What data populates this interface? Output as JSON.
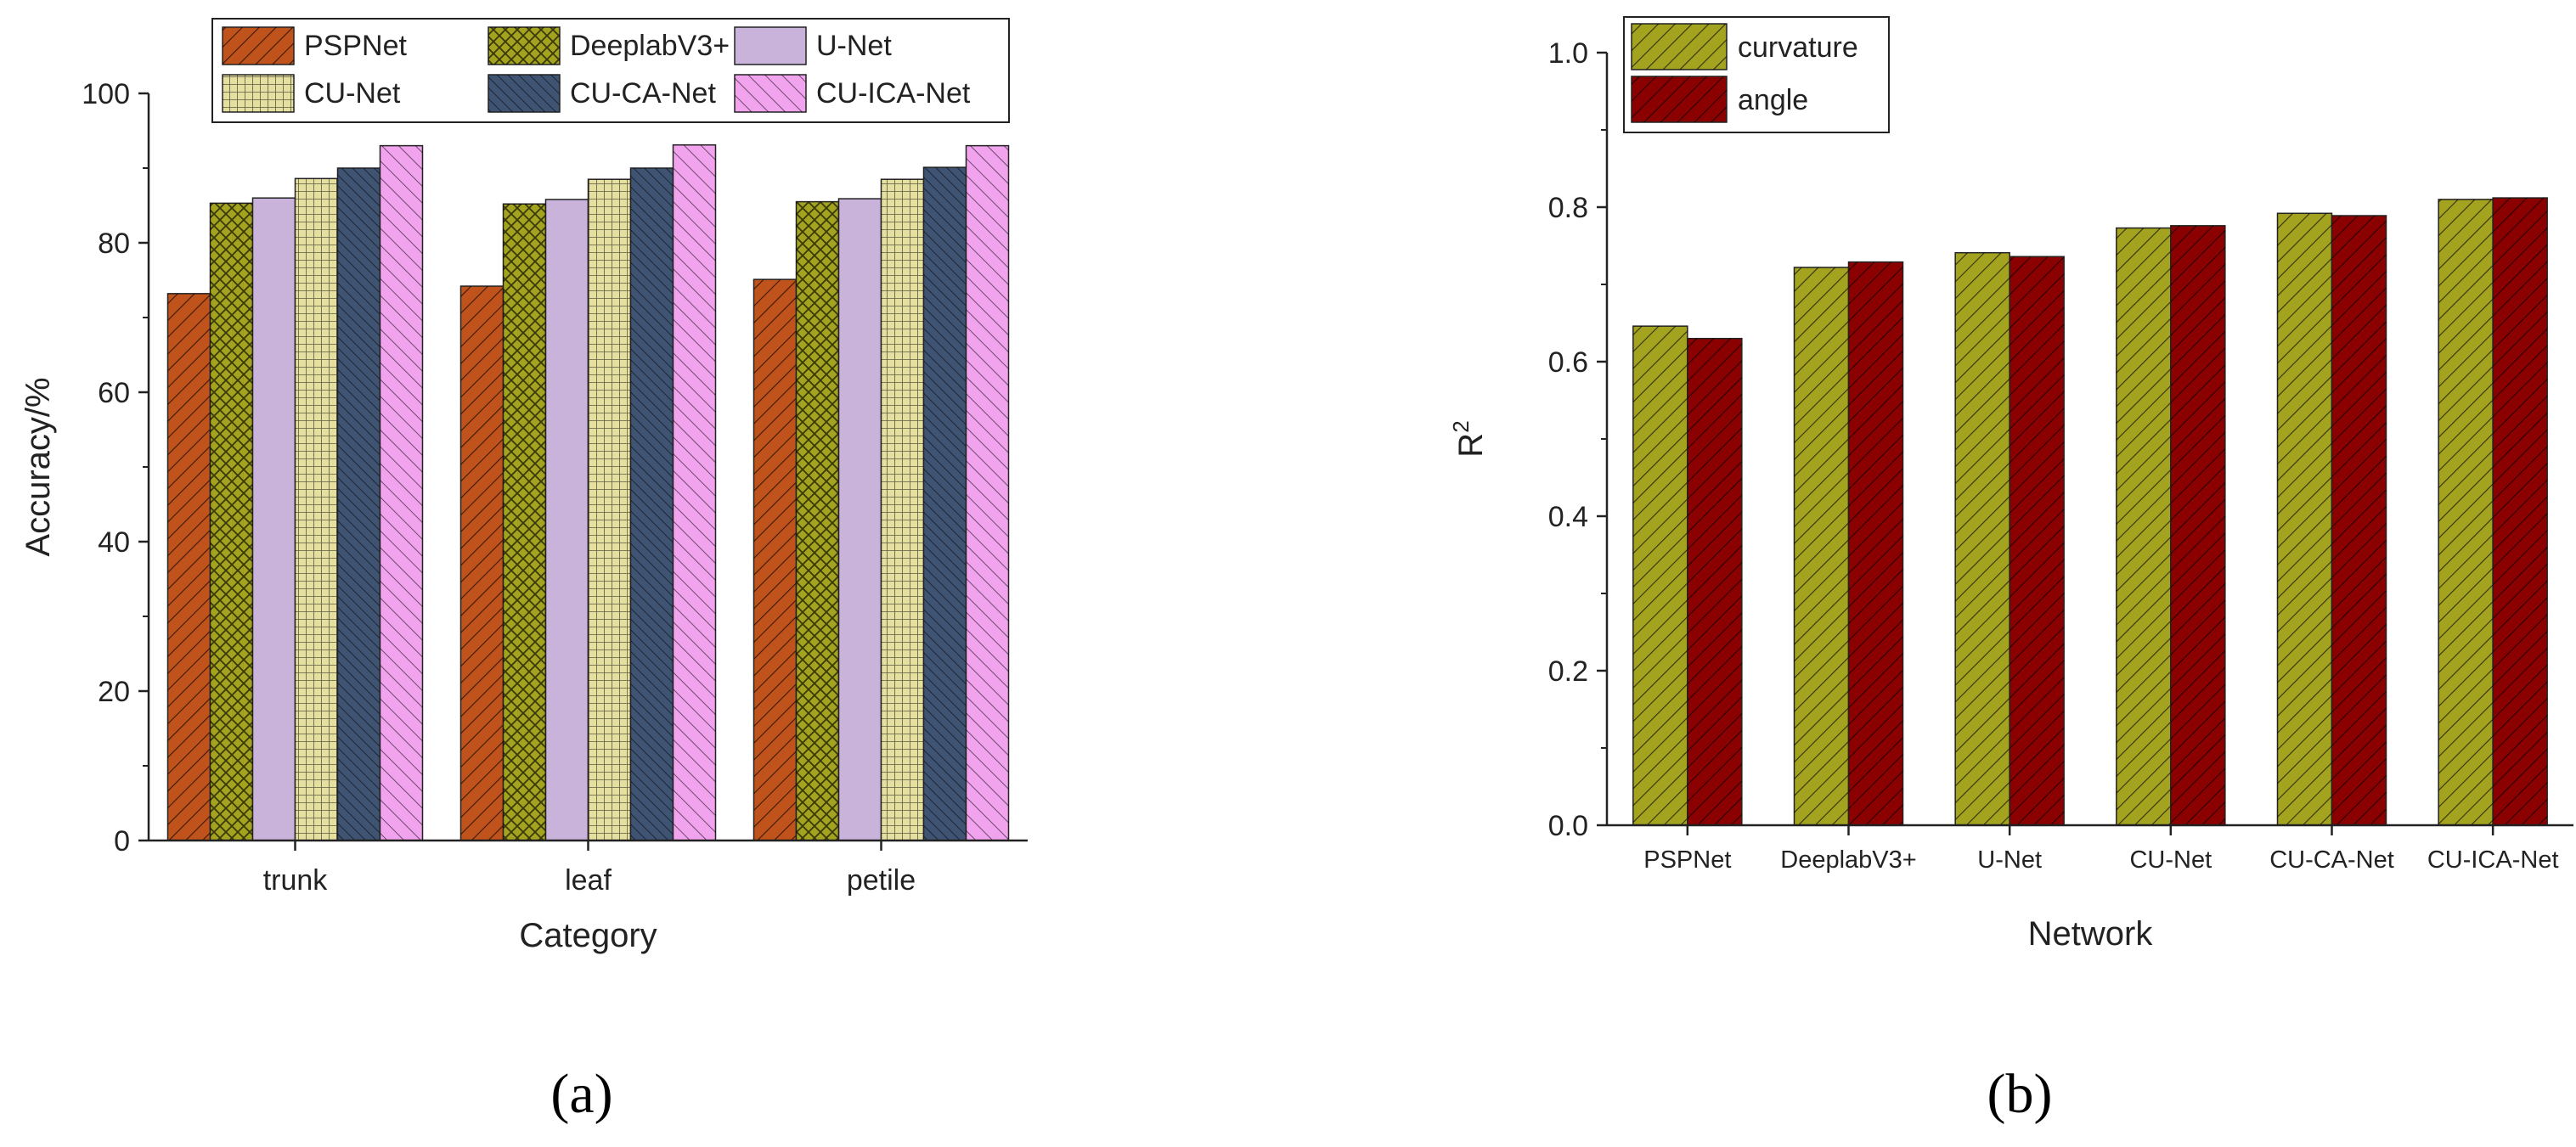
{
  "figure": {
    "panel_labels": [
      "(a)",
      "(b)"
    ]
  },
  "chart_data": [
    {
      "id": "a",
      "type": "bar",
      "categories": [
        "trunk",
        "leaf",
        "petile"
      ],
      "series": [
        {
          "name": "PSPNet",
          "values": [
            73.2,
            74.2,
            75.1
          ],
          "color": "#c0531b",
          "pattern": "hatch-right"
        },
        {
          "name": "DeeplabV3+",
          "values": [
            85.3,
            85.2,
            85.5
          ],
          "color": "#a3a320",
          "pattern": "cross"
        },
        {
          "name": "U-Net",
          "values": [
            86.0,
            85.8,
            85.9
          ],
          "color": "#c9b3db",
          "pattern": "none"
        },
        {
          "name": "CU-Net",
          "values": [
            88.6,
            88.5,
            88.5
          ],
          "color": "#e6e0a0",
          "pattern": "grid"
        },
        {
          "name": "CU-CA-Net",
          "values": [
            90.0,
            90.0,
            90.1
          ],
          "color": "#3f5373",
          "pattern": "hatch-left-fine"
        },
        {
          "name": "CU-ICA-Net",
          "values": [
            93.0,
            93.1,
            93.0
          ],
          "color": "#f2a3ee",
          "pattern": "hatch-left"
        }
      ],
      "xlabel": "Category",
      "ylabel": "Accuracy/%",
      "ylim": [
        0,
        100
      ],
      "yticks": [
        0,
        20,
        40,
        60,
        80,
        100
      ],
      "legend_position": "top"
    },
    {
      "id": "b",
      "type": "bar",
      "categories": [
        "PSPNet",
        "DeeplabV3+",
        "U-Net",
        "CU-Net",
        "CU-CA-Net",
        "CU-ICA-Net"
      ],
      "series": [
        {
          "name": "curvature",
          "values": [
            0.646,
            0.722,
            0.741,
            0.773,
            0.792,
            0.81
          ],
          "color": "#a3a320",
          "pattern": "hatch-right"
        },
        {
          "name": "angle",
          "values": [
            0.63,
            0.729,
            0.736,
            0.776,
            0.789,
            0.812
          ],
          "color": "#8b0000",
          "pattern": "hatch-right"
        }
      ],
      "xlabel": "Network",
      "ylabel": "R",
      "ylabel_superscript": "2",
      "ylim": [
        0.0,
        1.0
      ],
      "yticks": [
        "0.0",
        "0.2",
        "0.4",
        "0.6",
        "0.8",
        "1.0"
      ],
      "legend_position": "top-left"
    }
  ]
}
